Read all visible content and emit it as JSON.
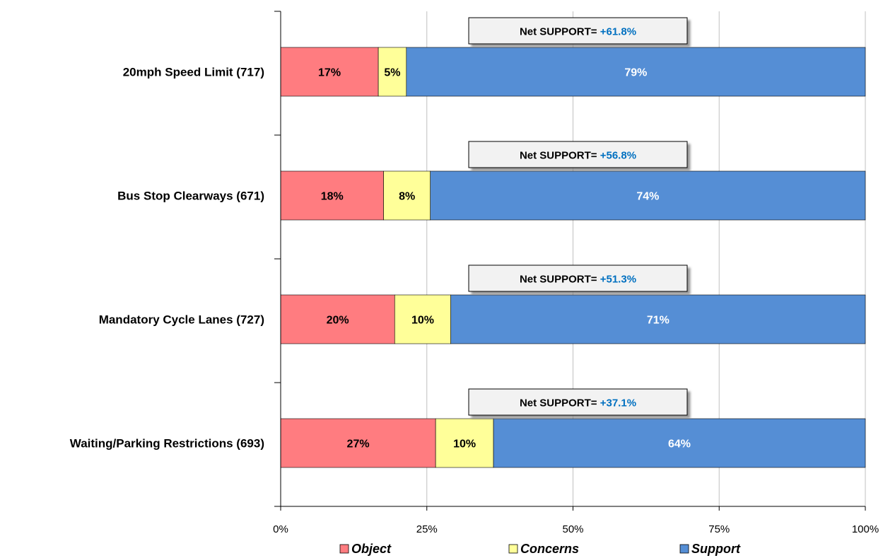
{
  "chart_data": {
    "type": "bar",
    "stacked": true,
    "orientation": "horizontal",
    "percent_scale": true,
    "categories": [
      "20mph Speed Limit (717)",
      "Bus Stop Clearways (671)",
      "Mandatory Cycle Lanes (727)",
      "Waiting/Parking Restrictions (693)"
    ],
    "series": [
      {
        "name": "Object",
        "color": "#FF7C80",
        "values": [
          16.7,
          17.6,
          19.5,
          26.5
        ],
        "labels": [
          "17%",
          "18%",
          "20%",
          "27%"
        ]
      },
      {
        "name": "Concerns",
        "color": "#FFFF99",
        "values": [
          4.8,
          8.0,
          9.6,
          9.9
        ],
        "labels": [
          "5%",
          "8%",
          "10%",
          "10%"
        ]
      },
      {
        "name": "Support",
        "color": "#558ED5",
        "values": [
          78.5,
          74.4,
          70.9,
          63.6
        ],
        "labels": [
          "79%",
          "74%",
          "71%",
          "64%"
        ]
      }
    ],
    "net_support": {
      "label": "Net  SUPPORT=",
      "values": [
        "+61.8%",
        "+56.8%",
        "+51.3%",
        "+37.1%"
      ],
      "value_color": "#0070C0"
    },
    "xlim": [
      0,
      100
    ],
    "x_ticks": [
      0,
      25,
      50,
      75,
      100
    ],
    "x_tick_labels": [
      "0%",
      "25%",
      "50%",
      "75%",
      "100%"
    ],
    "grid": true,
    "legend_position": "bottom",
    "title": "",
    "xlabel": "",
    "ylabel": ""
  }
}
